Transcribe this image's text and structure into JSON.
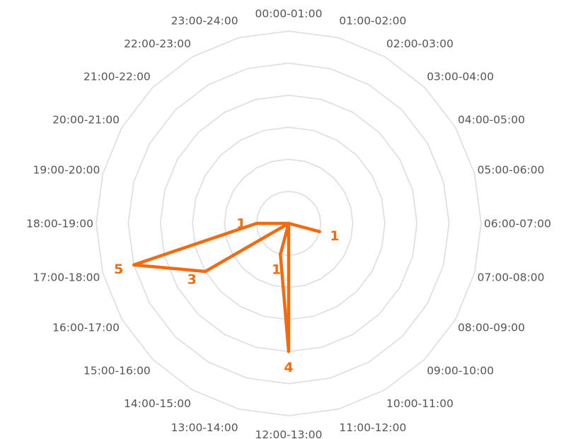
{
  "chart_data": {
    "type": "radar",
    "categories": [
      "00:00-01:00",
      "01:00-02:00",
      "02:00-03:00",
      "03:00-04:00",
      "04:00-05:00",
      "05:00-06:00",
      "06:00-07:00",
      "07:00-08:00",
      "08:00-09:00",
      "09:00-10:00",
      "10:00-11:00",
      "11:00-12:00",
      "12:00-13:00",
      "13:00-14:00",
      "14:00-15:00",
      "15:00-16:00",
      "16:00-17:00",
      "17:00-18:00",
      "18:00-19:00",
      "19:00-20:00",
      "20:00-21:00",
      "21:00-22:00",
      "22:00-23:00",
      "23:00-24:00"
    ],
    "values": [
      0,
      0,
      0,
      0,
      0,
      0,
      0,
      1,
      0,
      0,
      0,
      0,
      4,
      1,
      0,
      0,
      3,
      5,
      1,
      0,
      0,
      0,
      0,
      0
    ],
    "max": 6,
    "rings": 6,
    "grid": true,
    "value_labels_shown": true,
    "line_color": "#f26b0f",
    "grid_color": "#dddddd"
  }
}
